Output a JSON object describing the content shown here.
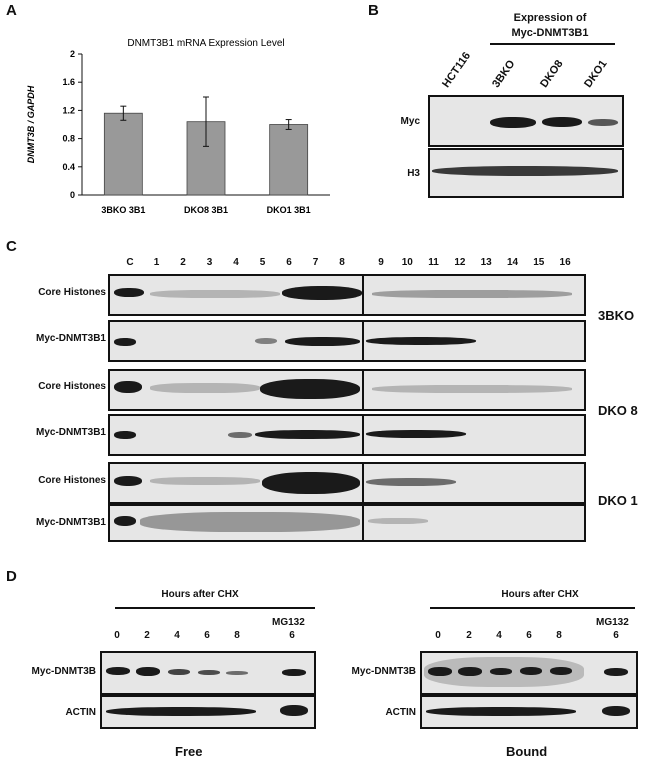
{
  "panel_a": {
    "letter": "A",
    "chart_data": {
      "type": "bar",
      "title": "DNMT3B1 mRNA Expression Level",
      "ylabel": "DNMT3B / GAPDH",
      "xlabel": "",
      "categories": [
        "3BKO 3B1",
        "DKO8 3B1",
        "DKO1 3B1"
      ],
      "values": [
        1.16,
        1.04,
        1.0
      ],
      "errors": [
        0.1,
        0.35,
        0.07
      ],
      "ylim": [
        0,
        2
      ],
      "yticks": [
        "0",
        "0.4",
        "0.8",
        "1.2",
        "1.6",
        "2"
      ],
      "grid": false,
      "bar_color": "#999999"
    }
  },
  "panel_b": {
    "letter": "B",
    "header_line1": "Expression of",
    "header_line2": "Myc-DNMT3B1",
    "lanes": [
      "HCT116",
      "3BKO",
      "DKO8",
      "DKO1"
    ],
    "rows": [
      "Myc",
      "H3"
    ]
  },
  "panel_c": {
    "letter": "C",
    "lanes_left": [
      "C",
      "1",
      "2",
      "3",
      "4",
      "5",
      "6",
      "7",
      "8"
    ],
    "lanes_right": [
      "9",
      "10",
      "11",
      "12",
      "13",
      "14",
      "15",
      "16"
    ],
    "groups": [
      {
        "cell_line": "3BKO",
        "row1": "Core Histones",
        "row2": "Myc-DNMT3B1"
      },
      {
        "cell_line": "DKO 8",
        "row1": "Core Histones",
        "row2": "Myc-DNMT3B1"
      },
      {
        "cell_line": "DKO 1",
        "row1": "Core Histones",
        "row2": "Myc-DNMT3B1"
      }
    ]
  },
  "panel_d": {
    "letter": "D",
    "left": {
      "header": "Hours after CHX",
      "times": [
        "0",
        "2",
        "4",
        "6",
        "8"
      ],
      "mg_label": "MG132",
      "mg_time": "6",
      "rows": [
        "Myc-DNMT3B",
        "ACTIN"
      ],
      "caption": "Free"
    },
    "right": {
      "header": "Hours after CHX",
      "times": [
        "0",
        "2",
        "4",
        "6",
        "8"
      ],
      "mg_label": "MG132",
      "mg_time": "6",
      "rows": [
        "Myc-DNMT3B",
        "ACTIN"
      ],
      "caption": "Bound"
    }
  }
}
